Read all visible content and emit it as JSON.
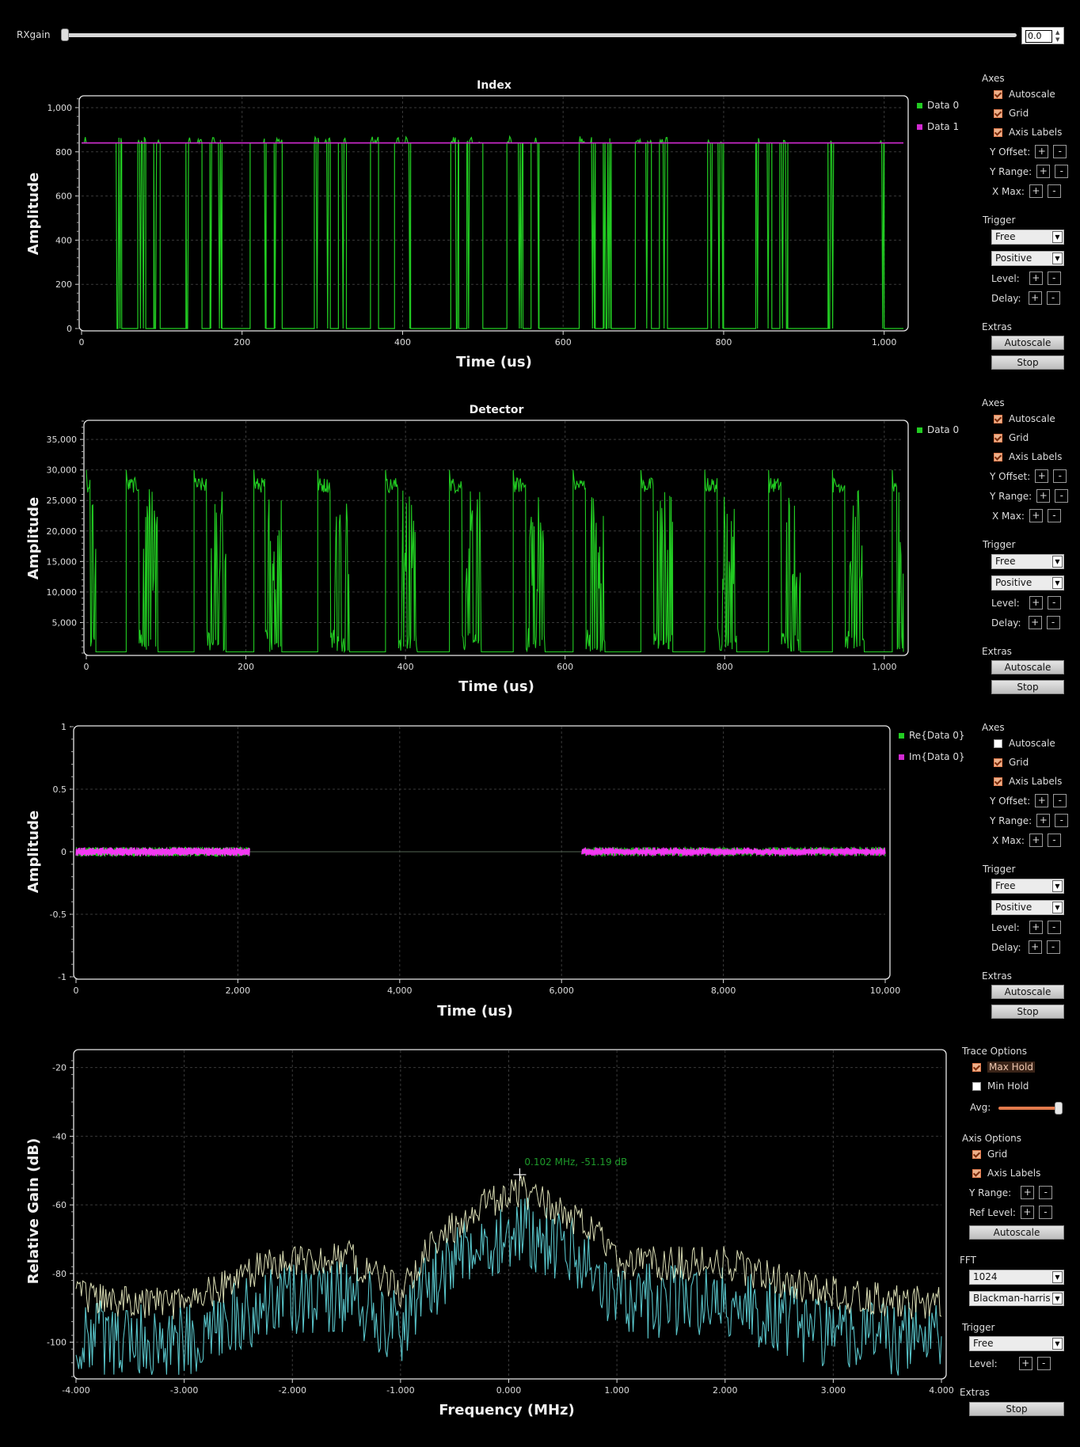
{
  "colors": {
    "background": "#000000",
    "green": "#22cc22",
    "magenta": "#d22ad2",
    "pink": "#ff30ff",
    "fft_trace": "#58c3c8",
    "fft_maxhold": "#f2f5c8",
    "frame": "#e8e8e8",
    "checkbox_accent": "#e27a4c"
  },
  "rx": {
    "label": "RXgain",
    "value": "0.0",
    "value_fraction": 0.0
  },
  "panels": [
    {
      "id": "index",
      "title": "Index",
      "xlabel": "Time (us)",
      "ylabel": "Amplitude",
      "legend": [
        {
          "name": "Data 0",
          "color": "#22cc22"
        },
        {
          "name": "Data 1",
          "color": "#d22ad2"
        }
      ],
      "controls": {
        "axes_title": "Axes",
        "autoscale": {
          "label": "Autoscale",
          "checked": true
        },
        "grid": {
          "label": "Grid",
          "checked": true
        },
        "axis_labels": {
          "label": "Axis Labels",
          "checked": true
        },
        "y_offset": "Y Offset:",
        "y_range": "Y Range:",
        "x_max": "X Max:",
        "trigger_title": "Trigger",
        "trigger_mode": "Free",
        "trigger_slope": "Positive",
        "level": "Level:",
        "delay": "Delay:",
        "extras_title": "Extras",
        "autoscale_btn": "Autoscale",
        "stop_btn": "Stop"
      }
    },
    {
      "id": "detector",
      "title": "Detector",
      "xlabel": "Time (us)",
      "ylabel": "Amplitude",
      "legend": [
        {
          "name": "Data 0",
          "color": "#22cc22"
        }
      ],
      "controls": {
        "axes_title": "Axes",
        "autoscale": {
          "label": "Autoscale",
          "checked": true
        },
        "grid": {
          "label": "Grid",
          "checked": true
        },
        "axis_labels": {
          "label": "Axis Labels",
          "checked": true
        },
        "y_offset": "Y Offset:",
        "y_range": "Y Range:",
        "x_max": "X Max:",
        "trigger_title": "Trigger",
        "trigger_mode": "Free",
        "trigger_slope": "Positive",
        "level": "Level:",
        "delay": "Delay:",
        "extras_title": "Extras",
        "autoscale_btn": "Autoscale",
        "stop_btn": "Stop"
      }
    },
    {
      "id": "complex",
      "title": "",
      "xlabel": "Time (us)",
      "ylabel": "Amplitude",
      "legend": [
        {
          "name": "Re{Data 0}",
          "color": "#22cc22"
        },
        {
          "name": "Im{Data 0}",
          "color": "#d22ad2"
        }
      ],
      "controls": {
        "axes_title": "Axes",
        "autoscale": {
          "label": "Autoscale",
          "checked": false
        },
        "grid": {
          "label": "Grid",
          "checked": true
        },
        "axis_labels": {
          "label": "Axis Labels",
          "checked": true
        },
        "y_offset": "Y Offset:",
        "y_range": "Y Range:",
        "x_max": "X Max:",
        "trigger_title": "Trigger",
        "trigger_mode": "Free",
        "trigger_slope": "Positive",
        "level": "Level:",
        "delay": "Delay:",
        "extras_title": "Extras",
        "autoscale_btn": "Autoscale",
        "stop_btn": "Stop"
      }
    }
  ],
  "fft": {
    "xlabel": "Frequency (MHz)",
    "ylabel": "Relative Gain (dB)",
    "marker_label": "0.102 MHz, -51.19 dB",
    "controls": {
      "trace_title": "Trace Options",
      "max_hold": {
        "label": "Max Hold",
        "checked": true
      },
      "min_hold": {
        "label": "Min Hold",
        "checked": false
      },
      "avg": "Avg:",
      "avg_fraction": 0.95,
      "axis_title": "Axis Options",
      "grid": {
        "label": "Grid",
        "checked": true
      },
      "axis_labels": {
        "label": "Axis Labels",
        "checked": true
      },
      "y_range": "Y Range:",
      "ref_level": "Ref Level:",
      "autoscale_btn": "Autoscale",
      "fft_title": "FFT",
      "fft_size": "1024",
      "window": "Blackman-harris",
      "trigger_title": "Trigger",
      "trigger_mode": "Free",
      "level": "Level:",
      "extras_title": "Extras",
      "stop_btn": "Stop"
    }
  },
  "chart_data": [
    {
      "type": "line",
      "title": "Index",
      "xlabel": "Time (us)",
      "ylabel": "Amplitude",
      "xlim": [
        0,
        1024
      ],
      "ylim": [
        0,
        1050
      ],
      "x_ticks": [
        "0",
        "200",
        "400",
        "600",
        "800",
        "1,000"
      ],
      "y_ticks": [
        "0",
        "200",
        "400",
        "600",
        "800",
        "1,000"
      ],
      "grid": true,
      "legend": "right",
      "series": [
        {
          "name": "Data 0",
          "color": "#22cc22",
          "low": 0,
          "high": 840,
          "spike_max": 870,
          "high_segments": [
            [
              0,
              50
            ],
            [
              70,
              80
            ],
            [
              90,
              98
            ],
            [
              130,
              150
            ],
            [
              160,
              175
            ],
            [
              210,
              230
            ],
            [
              240,
              250
            ],
            [
              290,
              310
            ],
            [
              320,
              330
            ],
            [
              360,
              370
            ],
            [
              390,
              410
            ],
            [
              460,
              470
            ],
            [
              480,
              500
            ],
            [
              530,
              550
            ],
            [
              560,
              570
            ],
            [
              620,
              640
            ],
            [
              650,
              660
            ],
            [
              690,
              710
            ],
            [
              720,
              730
            ],
            [
              780,
              800
            ],
            [
              840,
              860
            ],
            [
              870,
              880
            ],
            [
              930,
              1000
            ]
          ]
        },
        {
          "name": "Data 1",
          "color": "#d22ad2",
          "values": [
            840,
            840
          ]
        }
      ]
    },
    {
      "type": "line",
      "title": "Detector",
      "xlabel": "Time (us)",
      "ylabel": "Amplitude",
      "xlim": [
        0,
        1024
      ],
      "ylim": [
        0,
        38000
      ],
      "x_ticks": [
        "0",
        "200",
        "400",
        "600",
        "800",
        "1,000"
      ],
      "y_ticks": [
        "5,000",
        "10,000",
        "15,000",
        "20,000",
        "25,000",
        "30,000",
        "35,000"
      ],
      "grid": true,
      "legend": "right",
      "series": [
        {
          "name": "Data 0",
          "color": "#22cc22",
          "baseline": 200,
          "plateau": 27500,
          "peak": 30000,
          "bursts": [
            [
              0,
              12
            ],
            [
              50,
              90
            ],
            [
              135,
              175
            ],
            [
              210,
              245
            ],
            [
              290,
              330
            ],
            [
              375,
              415
            ],
            [
              455,
              495
            ],
            [
              535,
              575
            ],
            [
              610,
              650
            ],
            [
              695,
              735
            ],
            [
              775,
              815
            ],
            [
              855,
              895
            ],
            [
              935,
              975
            ],
            [
              1010,
              1024
            ]
          ]
        }
      ]
    },
    {
      "type": "line",
      "title": "",
      "xlabel": "Time (us)",
      "ylabel": "Amplitude",
      "xlim": [
        0,
        10000
      ],
      "ylim": [
        -1,
        1
      ],
      "x_ticks": [
        "0",
        "2,000",
        "4,000",
        "6,000",
        "8,000",
        "10,000"
      ],
      "y_ticks": [
        "-1",
        "-0.5",
        "0",
        "0.5",
        "1"
      ],
      "grid": true,
      "legend": "right",
      "series": [
        {
          "name": "Re{Data 0}",
          "color": "#22cc22",
          "active_ranges": [
            [
              0,
              2150
            ],
            [
              6250,
              10000
            ]
          ],
          "max_amplitude": 0.04
        },
        {
          "name": "Im{Data 0}",
          "color": "#d22ad2",
          "active_ranges": [
            [
              0,
              2150
            ],
            [
              6250,
              10000
            ]
          ],
          "max_amplitude": 0.035
        }
      ]
    },
    {
      "type": "line",
      "title": "",
      "xlabel": "Frequency (MHz)",
      "ylabel": "Relative Gain (dB)",
      "xlim": [
        -4,
        4
      ],
      "ylim": [
        -110,
        -15
      ],
      "x_ticks": [
        "-4.000",
        "-3.000",
        "-2.000",
        "-1.000",
        "0.000",
        "1.000",
        "2.000",
        "3.000",
        "4.000"
      ],
      "y_ticks": [
        "-100",
        "-80",
        "-60",
        "-40",
        "-20"
      ],
      "grid": true,
      "marker": {
        "x": 0.102,
        "y": -51.19,
        "label": "0.102 MHz, -51.19 dB"
      },
      "series": [
        {
          "name": "Max Hold",
          "color": "#f2f5c8",
          "shape": [
            [
              -4,
              -82
            ],
            [
              -3,
              -84
            ],
            [
              -2.2,
              -72
            ],
            [
              -1.5,
              -70
            ],
            [
              -1.0,
              -80
            ],
            [
              -0.7,
              -66
            ],
            [
              -0.3,
              -56
            ],
            [
              0.1,
              -51
            ],
            [
              0.5,
              -57
            ],
            [
              0.8,
              -63
            ],
            [
              1.0,
              -72
            ],
            [
              1.5,
              -72
            ],
            [
              2.0,
              -72
            ],
            [
              2.6,
              -78
            ],
            [
              3.2,
              -82
            ],
            [
              4,
              -84
            ]
          ]
        },
        {
          "name": "Trace",
          "color": "#58c3c8",
          "offset_db": -10
        }
      ]
    }
  ]
}
